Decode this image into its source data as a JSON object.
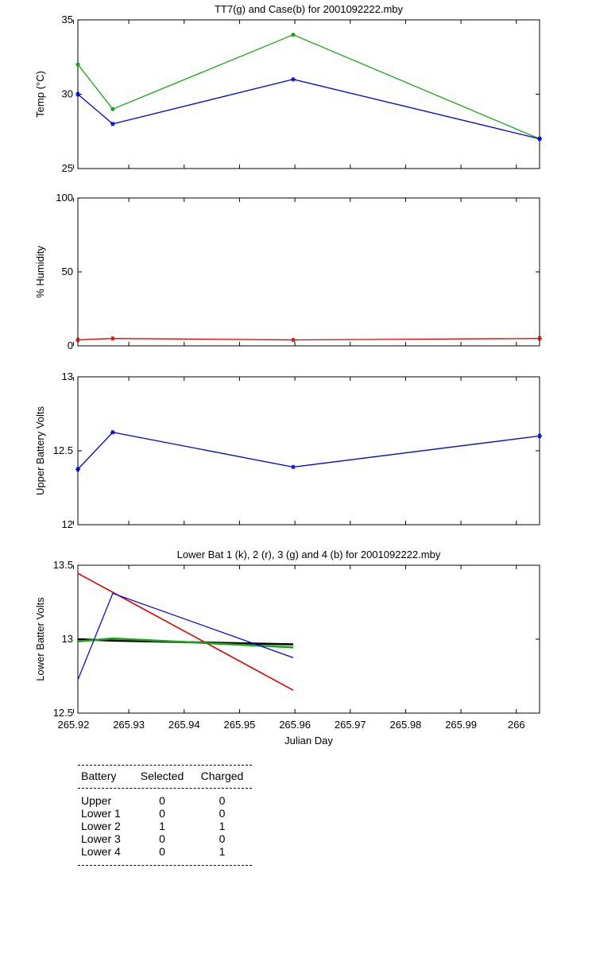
{
  "chart_data": [
    {
      "type": "line",
      "title": "TT7(g) and Case(b) for 2001092222.mby",
      "xlabel": "",
      "ylabel": "Temp  (°C)",
      "xlim": [
        265.9208,
        266.0042
      ],
      "ylim": [
        25,
        35
      ],
      "yticks": [
        "25",
        "30",
        "35"
      ],
      "grid": false,
      "series": [
        {
          "name": "TT7",
          "color": "#1aa31a",
          "marker": "dot",
          "x": [
            265.9208,
            265.9271,
            265.9597,
            266.0042
          ],
          "y": [
            32,
            29,
            34,
            27
          ]
        },
        {
          "name": "Case",
          "color": "#0000dd",
          "marker": "star",
          "x": [
            265.9208,
            265.9271,
            265.9597,
            266.0042
          ],
          "y": [
            30,
            28,
            31,
            27
          ]
        }
      ]
    },
    {
      "type": "line",
      "title": "",
      "xlabel": "",
      "ylabel": "% Humidity",
      "xlim": [
        265.9208,
        266.0042
      ],
      "ylim": [
        0,
        100
      ],
      "yticks": [
        "0",
        "50",
        "100"
      ],
      "grid": false,
      "series": [
        {
          "color": "#e00000",
          "marker": "star",
          "x": [
            265.9208,
            265.9271,
            265.9597,
            266.0042
          ],
          "y": [
            4,
            5,
            4,
            5
          ]
        }
      ]
    },
    {
      "type": "line",
      "title": "",
      "xlabel": "",
      "ylabel": "Upper Battery Volts",
      "xlim": [
        265.9208,
        266.0042
      ],
      "ylim": [
        12,
        13
      ],
      "yticks": [
        "12",
        "12.5",
        "13"
      ],
      "grid": false,
      "series": [
        {
          "color": "#0000dd",
          "marker": "star",
          "x": [
            265.9208,
            265.9271,
            265.9597,
            266.0042
          ],
          "y": [
            12.375,
            12.625,
            12.39,
            12.6
          ]
        }
      ]
    },
    {
      "type": "line",
      "title": "Lower Bat 1 (k), 2 (r), 3 (g) and 4 (b) for 2001092222.mby",
      "xlabel": "Julian Day",
      "ylabel": "Lower Batter Volts",
      "xlim": [
        265.9208,
        266.0042
      ],
      "ylim": [
        12.5,
        13.5
      ],
      "yticks": [
        "12.5",
        "13",
        "13.5"
      ],
      "xticks": [
        265.92,
        265.93,
        265.94,
        265.95,
        265.96,
        265.97,
        265.98,
        265.99,
        266
      ],
      "xticklabels": [
        "265.92",
        "265.93",
        "265.94",
        "265.95",
        "265.96",
        "265.97",
        "265.98",
        "265.99",
        "266"
      ],
      "grid": false,
      "series": [
        {
          "name": "1",
          "color": "#000000",
          "width": 2.5,
          "x": [
            265.9208,
            265.9271,
            265.9597
          ],
          "y": [
            13.0,
            12.99,
            12.965
          ]
        },
        {
          "name": "2",
          "color": "#e00000",
          "width": 1.6,
          "x": [
            265.9208,
            265.9597
          ],
          "y": [
            13.445,
            12.655
          ]
        },
        {
          "name": "3",
          "color": "#1aa31a",
          "width": 2.5,
          "x": [
            265.9208,
            265.9271,
            265.9597
          ],
          "y": [
            12.985,
            13.005,
            12.945
          ]
        },
        {
          "name": "4",
          "color": "#0000dd",
          "width": 1.2,
          "x": [
            265.9208,
            265.9271,
            265.9597
          ],
          "y": [
            12.725,
            13.31,
            12.875
          ]
        }
      ]
    }
  ],
  "stats_table": {
    "headers": [
      "Battery",
      "Selected",
      "Charged"
    ],
    "rows": [
      [
        "Upper",
        "0",
        "0"
      ],
      [
        "Lower 1",
        "0",
        "0"
      ],
      [
        "Lower 2",
        "1",
        "1"
      ],
      [
        "Lower 3",
        "0",
        "0"
      ],
      [
        "Lower 4",
        "0",
        "1"
      ]
    ]
  }
}
